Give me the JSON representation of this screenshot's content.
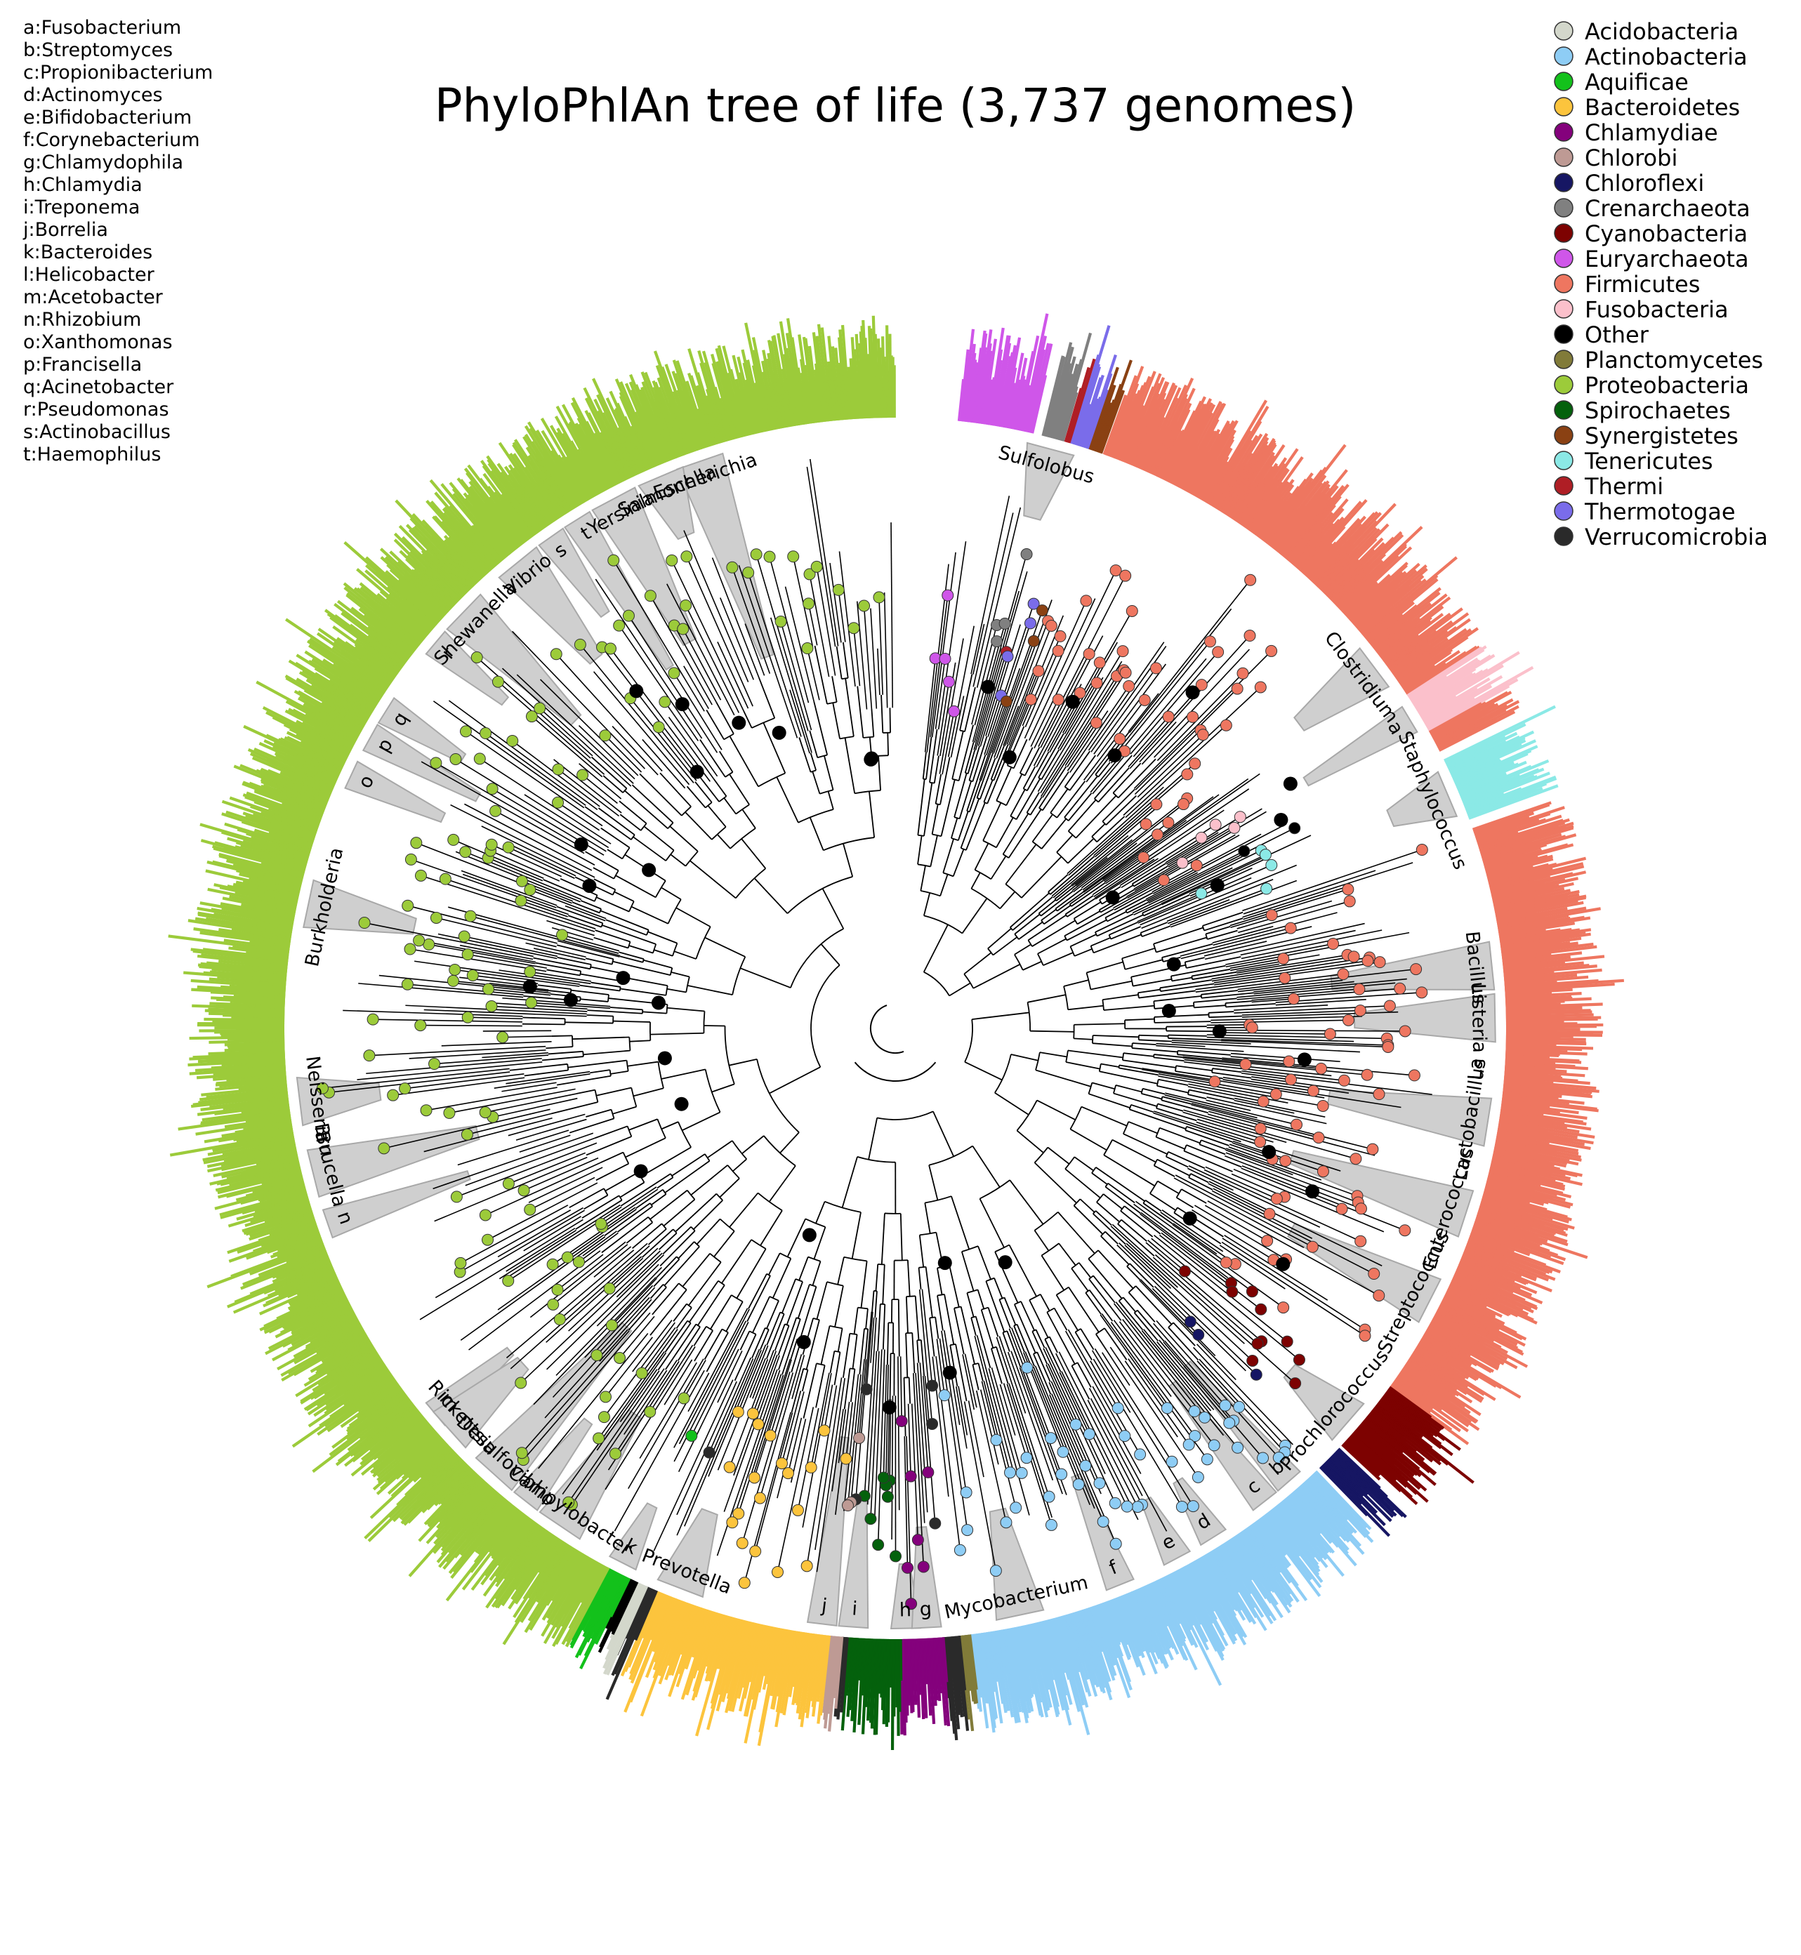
{
  "title": "PhyloPhlAn tree of life (3,737 genomes)",
  "abbreviations": [
    "a:Fusobacterium",
    "b:Streptomyces",
    "c:Propionibacterium",
    "d:Actinomyces",
    "e:Bifidobacterium",
    "f:Corynebacterium",
    "g:Chlamydophila",
    "h:Chlamydia",
    "i:Treponema",
    "j:Borrelia",
    "k:Bacteroides",
    "l:Helicobacter",
    "m:Acetobacter",
    "n:Rhizobium",
    "o:Xanthomonas",
    "p:Francisella",
    "q:Acinetobacter",
    "r:Pseudomonas",
    "s:Actinobacillus",
    "t:Haemophilus"
  ],
  "legend": [
    {
      "name": "Acidobacteria",
      "color": "#d3d7cb"
    },
    {
      "name": "Actinobacteria",
      "color": "#8ecdf5"
    },
    {
      "name": "Aquificae",
      "color": "#13c11b"
    },
    {
      "name": "Bacteroidetes",
      "color": "#fcc43d"
    },
    {
      "name": "Chlamydiae",
      "color": "#84017c"
    },
    {
      "name": "Chlorobi",
      "color": "#be9a94"
    },
    {
      "name": "Chloroflexi",
      "color": "#161663"
    },
    {
      "name": "Crenarchaeota",
      "color": "#808080"
    },
    {
      "name": "Cyanobacteria",
      "color": "#7d0201"
    },
    {
      "name": "Euryarchaeota",
      "color": "#cf56e9"
    },
    {
      "name": "Firmicutes",
      "color": "#ee7660"
    },
    {
      "name": "Fusobacteria",
      "color": "#fbc0cb"
    },
    {
      "name": "Other",
      "color": "#000000"
    },
    {
      "name": "Planctomycetes",
      "color": "#817b39"
    },
    {
      "name": "Proteobacteria",
      "color": "#9ccb3a"
    },
    {
      "name": "Spirochaetes",
      "color": "#04610c"
    },
    {
      "name": "Synergistetes",
      "color": "#8a4113"
    },
    {
      "name": "Tenericutes",
      "color": "#8be9e6"
    },
    {
      "name": "Thermi",
      "color": "#af1e25"
    },
    {
      "name": "Thermotogae",
      "color": "#7a6cea"
    },
    {
      "name": "Verrucomicrobia",
      "color": "#2a2a2a"
    }
  ],
  "ring": [
    {
      "phylum": "Euryarchaeota",
      "from": -84,
      "to": -77,
      "color": "#cf56e9"
    },
    {
      "phylum": "Crenarchaeota",
      "from": -76,
      "to": -74,
      "color": "#808080"
    },
    {
      "phylum": "Thermi",
      "from": -73.8,
      "to": -73.4,
      "color": "#af1e25"
    },
    {
      "phylum": "Thermotogae",
      "from": -73.2,
      "to": -71.5,
      "color": "#7a6cea"
    },
    {
      "phylum": "Synergistetes",
      "from": -71.4,
      "to": -70.2,
      "color": "#8a4113"
    },
    {
      "phylum": "Firmicutes",
      "from": -70,
      "to": -33,
      "color": "#ee7660"
    },
    {
      "phylum": "Fusobacteria",
      "from": -33,
      "to": -29,
      "color": "#fbc0cb"
    },
    {
      "phylum": "Firmicutes",
      "from": -29,
      "to": -27,
      "color": "#ee7660"
    },
    {
      "phylum": "Tenericutes",
      "from": -26,
      "to": -20,
      "color": "#8be9e6"
    },
    {
      "phylum": "Firmicutes",
      "from": -19,
      "to": 36,
      "color": "#ee7660"
    },
    {
      "phylum": "Cyanobacteria",
      "from": 36,
      "to": 43,
      "color": "#7d0201"
    },
    {
      "phylum": "Chloroflexi",
      "from": 43.5,
      "to": 46,
      "color": "#161663"
    },
    {
      "phylum": "Actinobacteria",
      "from": 46.5,
      "to": 83,
      "color": "#8ecdf5"
    },
    {
      "phylum": "Planctomycetes",
      "from": 83,
      "to": 84,
      "color": "#817b39"
    },
    {
      "phylum": "Verrucomicrobia",
      "from": 84,
      "to": 85.5,
      "color": "#2a2a2a"
    },
    {
      "phylum": "Chlamydiae",
      "from": 85.5,
      "to": 89.5,
      "color": "#84017c"
    },
    {
      "phylum": "Spirochaetes",
      "from": 89.5,
      "to": 94.5,
      "color": "#04610c"
    },
    {
      "phylum": "Verrucomicrobia",
      "from": 94.5,
      "to": 95,
      "color": "#2a2a2a"
    },
    {
      "phylum": "Chlorobi",
      "from": 95,
      "to": 96.2,
      "color": "#be9a94"
    },
    {
      "phylum": "Bacteroidetes",
      "from": 96.2,
      "to": 113,
      "color": "#fcc43d"
    },
    {
      "phylum": "Verrucomicrobia",
      "from": 113,
      "to": 114,
      "color": "#2a2a2a"
    },
    {
      "phylum": "Acidobacteria",
      "from": 114,
      "to": 115,
      "color": "#d3d7cb"
    },
    {
      "phylum": "Other",
      "from": 115,
      "to": 115.8,
      "color": "#000000"
    },
    {
      "phylum": "Aquificae",
      "from": 115.8,
      "to": 118,
      "color": "#13c11b"
    },
    {
      "phylum": "Proteobacteria",
      "from": 118,
      "to": 270,
      "color": "#9ccb3a"
    }
  ],
  "clade_labels": [
    {
      "text": "Escherichia",
      "angle": -109
    },
    {
      "text": "Salmonella",
      "angle": -113
    },
    {
      "text": "Yersinia",
      "angle": -118
    },
    {
      "text": "t",
      "angle": -122
    },
    {
      "text": "s",
      "angle": -125
    },
    {
      "text": "Vibrio",
      "angle": -129
    },
    {
      "text": "Shewanella",
      "angle": -136
    },
    {
      "text": "r",
      "angle": -140
    },
    {
      "text": "q",
      "angle": -148
    },
    {
      "text": "p",
      "angle": -151
    },
    {
      "text": "o",
      "angle": -155
    },
    {
      "text": "Burkholderia",
      "angle": -168
    },
    {
      "text": "Neisseria",
      "angle": 173
    },
    {
      "text": "Bru",
      "angle": 169
    },
    {
      "text": "Brucella",
      "angle": 166
    },
    {
      "text": "n",
      "angle": 161
    },
    {
      "text": "m",
      "angle": 140
    },
    {
      "text": "Rickettsia",
      "angle": 138
    },
    {
      "text": "Desulfovibrio",
      "angle": 132
    },
    {
      "text": "l",
      "angle": 128
    },
    {
      "text": "Campylobacter",
      "angle": 124
    },
    {
      "text": "k",
      "angle": 117
    },
    {
      "text": "Prevotella",
      "angle": 111
    },
    {
      "text": "j",
      "angle": 97
    },
    {
      "text": "i",
      "angle": 94
    },
    {
      "text": "h",
      "angle": 89
    },
    {
      "text": "g",
      "angle": 87
    },
    {
      "text": "Mycobacterium",
      "angle": 78
    },
    {
      "text": "f",
      "angle": 68
    },
    {
      "text": "e",
      "angle": 62
    },
    {
      "text": "d",
      "angle": 58
    },
    {
      "text": "c",
      "angle": 52
    },
    {
      "text": "b",
      "angle": 49
    },
    {
      "text": "Prochlorococcus",
      "angle": 41
    },
    {
      "text": "Streptococcus",
      "angle": 27
    },
    {
      "text": "Enterococcus",
      "angle": 18
    },
    {
      "text": "Lactobacillus",
      "angle": 9
    },
    {
      "text": "La",
      "angle": 4
    },
    {
      "text": "Listeria",
      "angle": -1
    },
    {
      "text": "Bacillus",
      "angle": -6
    },
    {
      "text": "Staphylococcus",
      "angle": -23
    },
    {
      "text": "a",
      "angle": -31
    },
    {
      "text": "Clostridium",
      "angle": -37
    },
    {
      "text": "Sulfolobus",
      "angle": -75
    }
  ]
}
